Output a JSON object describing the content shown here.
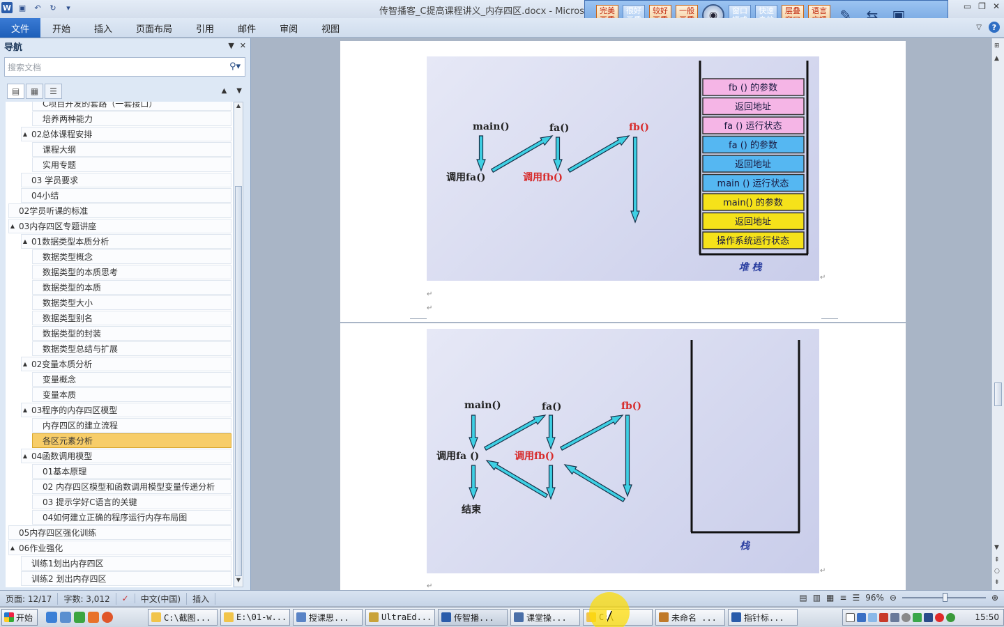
{
  "titlebar": {
    "title": "传智播客_C提高课程讲义_内存四区.docx - Microsoft Word",
    "qat_icons": [
      "word-icon",
      "save-icon",
      "undo-icon",
      "redo-icon",
      "customize-icon"
    ],
    "window_controls": [
      "minimize",
      "restore",
      "close"
    ]
  },
  "recorder": {
    "buttons": [
      {
        "label": "完美画质",
        "style": "orange"
      },
      {
        "label": "很好画质",
        "style": "blue"
      },
      {
        "label": "较好画质",
        "style": "orange"
      },
      {
        "label": "一般画质",
        "style": "orange"
      },
      {
        "label": "窗口模式",
        "style": "blue"
      },
      {
        "label": "快速高效",
        "style": "blue"
      },
      {
        "label": "层叠窗口",
        "style": "orange"
      },
      {
        "label": "语言广播",
        "style": "orange"
      }
    ]
  },
  "ribbon": {
    "file_tab": "文件",
    "tabs": [
      "开始",
      "插入",
      "页面布局",
      "引用",
      "邮件",
      "审阅",
      "视图"
    ]
  },
  "nav": {
    "title": "导航",
    "search_placeholder": "搜索文档",
    "items": [
      {
        "label": "C项目开发的套路（一套接口）",
        "level": 2,
        "expand": ""
      },
      {
        "label": "培养两种能力",
        "level": 2,
        "expand": ""
      },
      {
        "label": "02总体课程安排",
        "level": 1,
        "expand": "▲"
      },
      {
        "label": "课程大纲",
        "level": 2,
        "expand": ""
      },
      {
        "label": "实用专题",
        "level": 2,
        "expand": ""
      },
      {
        "label": "03 学员要求",
        "level": 1,
        "expand": ""
      },
      {
        "label": "04小结",
        "level": 1,
        "expand": ""
      },
      {
        "label": "02学员听课的标准",
        "level": 0,
        "expand": ""
      },
      {
        "label": "03内存四区专题讲座",
        "level": 0,
        "expand": "▲"
      },
      {
        "label": "01数据类型本质分析",
        "level": 1,
        "expand": "▲"
      },
      {
        "label": "数据类型概念",
        "level": 2,
        "expand": ""
      },
      {
        "label": "数据类型的本质思考",
        "level": 2,
        "expand": ""
      },
      {
        "label": "数据类型的本质",
        "level": 2,
        "expand": ""
      },
      {
        "label": "数据类型大小",
        "level": 2,
        "expand": ""
      },
      {
        "label": "数据类型别名",
        "level": 2,
        "expand": ""
      },
      {
        "label": "数据类型的封装",
        "level": 2,
        "expand": ""
      },
      {
        "label": "数据类型总结与扩展",
        "level": 2,
        "expand": ""
      },
      {
        "label": "02变量本质分析",
        "level": 1,
        "expand": "▲"
      },
      {
        "label": "变量概念",
        "level": 2,
        "expand": ""
      },
      {
        "label": "变量本质",
        "level": 2,
        "expand": ""
      },
      {
        "label": "03程序的内存四区模型",
        "level": 1,
        "expand": "▲"
      },
      {
        "label": "内存四区的建立流程",
        "level": 2,
        "expand": ""
      },
      {
        "label": "各区元素分析",
        "level": 2,
        "expand": "",
        "selected": true
      },
      {
        "label": "04函数调用模型",
        "level": 1,
        "expand": "▲"
      },
      {
        "label": "01基本原理",
        "level": 2,
        "expand": ""
      },
      {
        "label": "02 内存四区模型和函数调用模型变量传递分析",
        "level": 2,
        "expand": ""
      },
      {
        "label": "03 提示学好C语言的关键",
        "level": 2,
        "expand": ""
      },
      {
        "label": "04如何建立正确的程序运行内存布局图",
        "level": 2,
        "expand": ""
      },
      {
        "label": "05内存四区强化训练",
        "level": 0,
        "expand": ""
      },
      {
        "label": "06作业强化",
        "level": 0,
        "expand": "▲"
      },
      {
        "label": "训练1划出内存四区",
        "level": 1,
        "expand": ""
      },
      {
        "label": "训练2 划出内存四区",
        "level": 1,
        "expand": ""
      }
    ]
  },
  "slide1": {
    "labels": {
      "main": "main()",
      "fa": "fa()",
      "fb": "fb()",
      "call_fa": "调用fa()",
      "call_fb": "调用fb()"
    },
    "stack_title": "堆 栈",
    "stack_cells": [
      {
        "text": "fb () 的参数",
        "color": "#f5b5e6"
      },
      {
        "text": "返回地址",
        "color": "#f5b5e6"
      },
      {
        "text": "fa () 运行状态",
        "color": "#f5b5e6"
      },
      {
        "text": "fa () 的参数",
        "color": "#55b7f2"
      },
      {
        "text": "返回地址",
        "color": "#55b7f2"
      },
      {
        "text": "main () 运行状态",
        "color": "#55b7f2"
      },
      {
        "text": "main() 的参数",
        "color": "#f5e21a"
      },
      {
        "text": "返回地址",
        "color": "#f5e21a"
      },
      {
        "text": "操作系统运行状态",
        "color": "#f5e21a"
      }
    ]
  },
  "slide2": {
    "labels": {
      "main": "main()",
      "fa": "fa()",
      "fb": "fb()",
      "call_fa": "调用fa ()",
      "call_fb": "调用fb()",
      "end": "结束"
    },
    "stack_title": "栈"
  },
  "status": {
    "page": "页面: 12/17",
    "words": "字数: 3,012",
    "lang": "中文(中国)",
    "mode": "插入",
    "zoom": "96%"
  },
  "taskbar": {
    "start": "开始",
    "tasks": [
      {
        "label": "C:\\截图...",
        "color": "#f1c44a"
      },
      {
        "label": "E:\\01-w...",
        "color": "#f1c44a"
      },
      {
        "label": "授课思...",
        "color": "#5a84c6"
      },
      {
        "label": "UltraEd...",
        "color": "#c9a33a"
      },
      {
        "label": "传智播...",
        "color": "#2a5caa",
        "active": true
      },
      {
        "label": "课堂操...",
        "color": "#4a6fa8"
      },
      {
        "label": "C:\\",
        "color": "#f1c44a"
      },
      {
        "label": "未命名 ...",
        "color": "#c07a2a"
      },
      {
        "label": "指针标...",
        "color": "#2a5caa"
      }
    ],
    "clock": "15:50"
  }
}
